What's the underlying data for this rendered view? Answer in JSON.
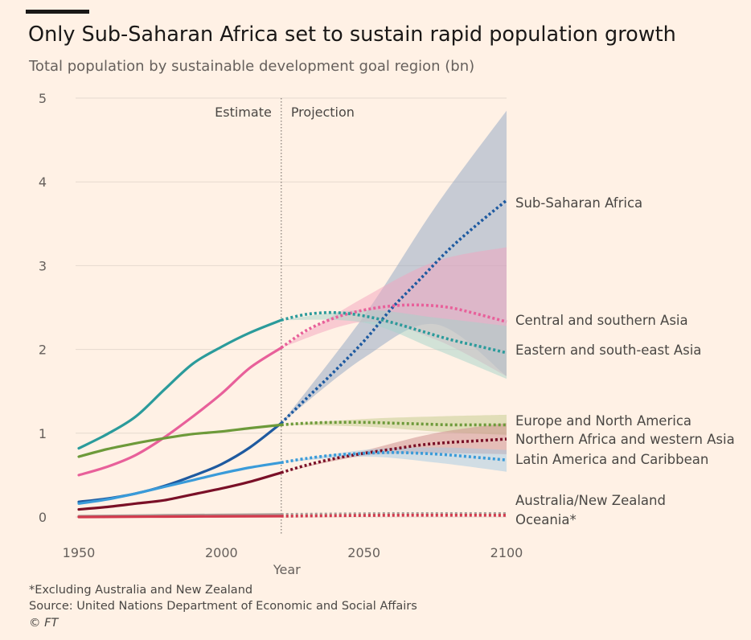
{
  "header": {
    "title": "Only Sub-Saharan Africa set to sustain rapid population growth",
    "subtitle": "Total population by sustainable development goal region (bn)"
  },
  "footer": {
    "note": "*Excluding Australia and New Zealand",
    "source": "Source: United Nations Department of Economic and Social Affairs",
    "credit": "© FT"
  },
  "chart_data": {
    "type": "line",
    "xlabel": "Year",
    "ylabel": "",
    "xlim": [
      1950,
      2100
    ],
    "ylim": [
      0,
      5
    ],
    "x_ticks": [
      "1950",
      "2000",
      "2050",
      "2100"
    ],
    "y_ticks": [
      "0",
      "1",
      "2",
      "3",
      "4",
      "5"
    ],
    "grid": true,
    "divider": {
      "x": 2021,
      "left_label": "Estimate",
      "right_label": "Projection"
    },
    "series": [
      {
        "name": "Sub-Saharan Africa",
        "color": "#1e5aa0",
        "estimate": [
          [
            1950,
            0.18
          ],
          [
            1960,
            0.22
          ],
          [
            1970,
            0.28
          ],
          [
            1980,
            0.37
          ],
          [
            1990,
            0.49
          ],
          [
            2000,
            0.63
          ],
          [
            2010,
            0.83
          ],
          [
            2021,
            1.12
          ]
        ],
        "projection": [
          [
            2021,
            1.12
          ],
          [
            2030,
            1.42
          ],
          [
            2040,
            1.75
          ],
          [
            2050,
            2.1
          ],
          [
            2060,
            2.5
          ],
          [
            2070,
            2.85
          ],
          [
            2080,
            3.2
          ],
          [
            2090,
            3.5
          ],
          [
            2100,
            3.78
          ]
        ],
        "band": {
          "color": "#8fa6c4",
          "lower": [
            [
              2021,
              1.12
            ],
            [
              2050,
              1.9
            ],
            [
              2075,
              2.3
            ],
            [
              2100,
              1.68
            ]
          ],
          "upper": [
            [
              2021,
              1.12
            ],
            [
              2050,
              2.4
            ],
            [
              2075,
              3.7
            ],
            [
              2100,
              4.85
            ]
          ]
        }
      },
      {
        "name": "Central and southern Asia",
        "color": "#e8609a",
        "estimate": [
          [
            1950,
            0.5
          ],
          [
            1960,
            0.6
          ],
          [
            1970,
            0.74
          ],
          [
            1980,
            0.95
          ],
          [
            1990,
            1.2
          ],
          [
            2000,
            1.47
          ],
          [
            2010,
            1.78
          ],
          [
            2021,
            2.02
          ]
        ],
        "projection": [
          [
            2021,
            2.02
          ],
          [
            2030,
            2.23
          ],
          [
            2040,
            2.38
          ],
          [
            2050,
            2.47
          ],
          [
            2060,
            2.52
          ],
          [
            2070,
            2.53
          ],
          [
            2080,
            2.5
          ],
          [
            2090,
            2.42
          ],
          [
            2100,
            2.33
          ]
        ],
        "band": {
          "color": "#f4a3be",
          "lower": [
            [
              2021,
              2.02
            ],
            [
              2050,
              2.33
            ],
            [
              2075,
              2.12
            ],
            [
              2100,
              1.68
            ]
          ],
          "upper": [
            [
              2021,
              2.02
            ],
            [
              2050,
              2.62
            ],
            [
              2075,
              3.05
            ],
            [
              2100,
              3.22
            ]
          ]
        }
      },
      {
        "name": "Eastern and south-east Asia",
        "color": "#2b9b9b",
        "estimate": [
          [
            1950,
            0.82
          ],
          [
            1960,
            0.99
          ],
          [
            1970,
            1.2
          ],
          [
            1980,
            1.52
          ],
          [
            1990,
            1.83
          ],
          [
            2000,
            2.03
          ],
          [
            2010,
            2.2
          ],
          [
            2021,
            2.35
          ]
        ],
        "projection": [
          [
            2021,
            2.35
          ],
          [
            2030,
            2.42
          ],
          [
            2040,
            2.44
          ],
          [
            2050,
            2.4
          ],
          [
            2060,
            2.32
          ],
          [
            2070,
            2.22
          ],
          [
            2080,
            2.12
          ],
          [
            2090,
            2.04
          ],
          [
            2100,
            1.96
          ]
        ],
        "band": {
          "color": "#a6d4ca",
          "lower": [
            [
              2021,
              2.35
            ],
            [
              2050,
              2.32
            ],
            [
              2075,
              2.0
            ],
            [
              2100,
              1.65
            ]
          ],
          "upper": [
            [
              2021,
              2.35
            ],
            [
              2050,
              2.47
            ],
            [
              2075,
              2.38
            ],
            [
              2100,
              2.28
            ]
          ]
        }
      },
      {
        "name": "Europe and North America",
        "color": "#6d9a3a",
        "estimate": [
          [
            1950,
            0.72
          ],
          [
            1960,
            0.81
          ],
          [
            1970,
            0.88
          ],
          [
            1980,
            0.94
          ],
          [
            1990,
            0.99
          ],
          [
            2000,
            1.02
          ],
          [
            2010,
            1.06
          ],
          [
            2021,
            1.1
          ]
        ],
        "projection": [
          [
            2021,
            1.1
          ],
          [
            2030,
            1.12
          ],
          [
            2040,
            1.13
          ],
          [
            2050,
            1.13
          ],
          [
            2060,
            1.12
          ],
          [
            2070,
            1.11
          ],
          [
            2080,
            1.1
          ],
          [
            2090,
            1.1
          ],
          [
            2100,
            1.1
          ]
        ],
        "band": {
          "color": "#c4cc8c",
          "lower": [
            [
              2021,
              1.1
            ],
            [
              2050,
              1.08
            ],
            [
              2075,
              1.02
            ],
            [
              2100,
              0.98
            ]
          ],
          "upper": [
            [
              2021,
              1.1
            ],
            [
              2050,
              1.17
            ],
            [
              2075,
              1.2
            ],
            [
              2100,
              1.22
            ]
          ]
        }
      },
      {
        "name": "Northern Africa and western Asia",
        "color": "#7a1027",
        "estimate": [
          [
            1950,
            0.09
          ],
          [
            1960,
            0.12
          ],
          [
            1970,
            0.16
          ],
          [
            1980,
            0.2
          ],
          [
            1990,
            0.27
          ],
          [
            2000,
            0.34
          ],
          [
            2010,
            0.42
          ],
          [
            2021,
            0.53
          ]
        ],
        "projection": [
          [
            2021,
            0.53
          ],
          [
            2030,
            0.62
          ],
          [
            2040,
            0.7
          ],
          [
            2050,
            0.76
          ],
          [
            2060,
            0.81
          ],
          [
            2070,
            0.86
          ],
          [
            2080,
            0.89
          ],
          [
            2090,
            0.91
          ],
          [
            2100,
            0.93
          ]
        ],
        "band": {
          "color": "#cc8a8a",
          "lower": [
            [
              2021,
              0.53
            ],
            [
              2050,
              0.73
            ],
            [
              2075,
              0.76
            ],
            [
              2100,
              0.75
            ]
          ],
          "upper": [
            [
              2021,
              0.53
            ],
            [
              2050,
              0.79
            ],
            [
              2075,
              1.0
            ],
            [
              2100,
              1.12
            ]
          ]
        }
      },
      {
        "name": "Latin America and Caribbean",
        "color": "#3a9bd9",
        "estimate": [
          [
            1950,
            0.16
          ],
          [
            1960,
            0.21
          ],
          [
            1970,
            0.28
          ],
          [
            1980,
            0.36
          ],
          [
            1990,
            0.44
          ],
          [
            2000,
            0.52
          ],
          [
            2010,
            0.59
          ],
          [
            2021,
            0.65
          ]
        ],
        "projection": [
          [
            2021,
            0.65
          ],
          [
            2030,
            0.7
          ],
          [
            2040,
            0.74
          ],
          [
            2050,
            0.76
          ],
          [
            2060,
            0.77
          ],
          [
            2070,
            0.76
          ],
          [
            2080,
            0.74
          ],
          [
            2090,
            0.71
          ],
          [
            2100,
            0.68
          ]
        ],
        "band": {
          "color": "#a3c9e3",
          "lower": [
            [
              2021,
              0.65
            ],
            [
              2050,
              0.72
            ],
            [
              2075,
              0.65
            ],
            [
              2100,
              0.54
            ]
          ],
          "upper": [
            [
              2021,
              0.65
            ],
            [
              2050,
              0.8
            ],
            [
              2075,
              0.83
            ],
            [
              2100,
              0.8
            ]
          ]
        }
      },
      {
        "name": "Australia/New Zealand",
        "color": "#a89e98",
        "estimate": [
          [
            1950,
            0.01
          ],
          [
            1980,
            0.02
          ],
          [
            2021,
            0.03
          ]
        ],
        "projection": [
          [
            2021,
            0.03
          ],
          [
            2060,
            0.04
          ],
          [
            2100,
            0.04
          ]
        ]
      },
      {
        "name": "Oceania*",
        "color": "#d23a4d",
        "estimate": [
          [
            1950,
            0.0
          ],
          [
            1980,
            0.005
          ],
          [
            2021,
            0.01
          ]
        ],
        "projection": [
          [
            2021,
            0.01
          ],
          [
            2060,
            0.02
          ],
          [
            2100,
            0.02
          ]
        ]
      }
    ]
  }
}
